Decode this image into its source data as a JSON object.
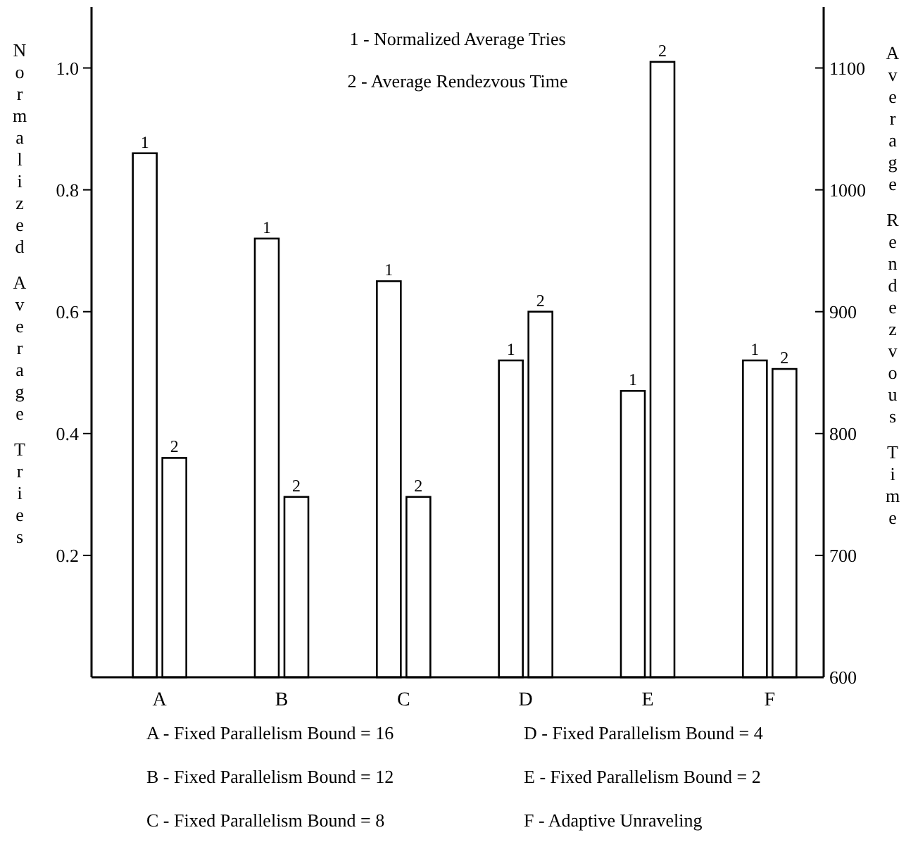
{
  "chart_data": {
    "type": "bar",
    "ylabel": "Normalized Average Tries",
    "y2label": "Average Rendezvous Time",
    "categories": [
      "A",
      "B",
      "C",
      "D",
      "E",
      "F"
    ],
    "series": [
      {
        "name": "1",
        "color": "#ffffff",
        "values": [
          0.86,
          0.72,
          0.65,
          0.52,
          0.47,
          0.52
        ]
      },
      {
        "name": "2",
        "color": "#ffffff",
        "axis": "y2",
        "values": [
          780,
          748,
          748,
          900,
          1105,
          853
        ]
      }
    ],
    "ylim": [
      0,
      1.1
    ],
    "yticks": [
      0.2,
      0.4,
      0.6,
      0.8,
      {
        "value": 1,
        "label": "1.0"
      }
    ],
    "y2lim": [
      600,
      1150
    ],
    "y2ticks": [
      600,
      700,
      800,
      900,
      1000,
      1100
    ],
    "grid": false,
    "annotations": [
      "1 - Normalized Average Tries",
      "2 - Average Rendezvous Time",
      "A - Fixed Parallelism Bound = 16",
      "B - Fixed Parallelism Bound = 12",
      "C - Fixed Parallelism Bound = 8",
      "D - Fixed Parallelism Bound = 4",
      "E - Fixed Parallelism Bound = 2",
      "F - Adaptive Unraveling"
    ]
  }
}
